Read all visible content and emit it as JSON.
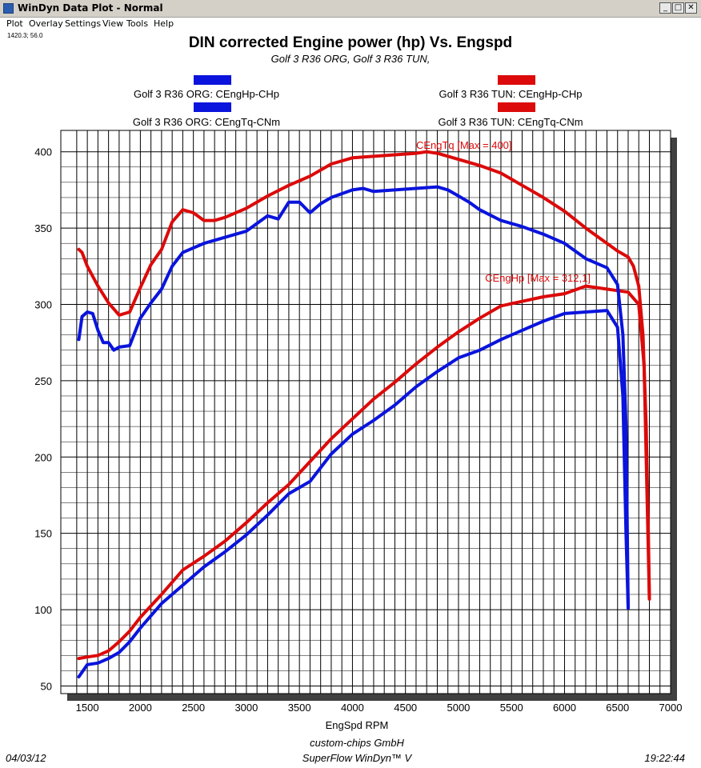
{
  "window": {
    "title": "WinDyn Data Plot - Normal",
    "buttons": {
      "minimize": "_",
      "restore": "□",
      "close": "✕"
    }
  },
  "menu": [
    "Plot",
    "Overlay",
    "Settings",
    "View",
    "Tools",
    "Help"
  ],
  "cursor_readout": "1420.3; 56.0",
  "footer": {
    "date": "04/03/12",
    "company": "custom-chips GmbH",
    "product": "SuperFlow WinDyn™ V",
    "time": "19:22:44"
  },
  "colors": {
    "org": "#0a14dc",
    "tun": "#dc0a0a",
    "grid": "#000000",
    "shadow": "#404040"
  },
  "chart_data": {
    "type": "line",
    "title": "DIN corrected Engine power (hp) Vs. Engspd",
    "subtitle": "Golf 3 R36 ORG, Golf 3 R36 TUN,",
    "xlabel": "EngSpd RPM",
    "ylabel": "",
    "xlim": [
      1250,
      7000
    ],
    "ylim": [
      45,
      414
    ],
    "xticks": [
      1500,
      2000,
      2500,
      3000,
      3500,
      4000,
      4500,
      5000,
      5500,
      6000,
      6500,
      7000
    ],
    "yticks": [
      50,
      100,
      150,
      200,
      250,
      300,
      350,
      400
    ],
    "legend": [
      {
        "label": "Golf 3 R36 ORG: CEngHp-CHp",
        "color": "#0a14dc"
      },
      {
        "label": "Golf 3 R36 TUN: CEngHp-CHp",
        "color": "#dc0a0a"
      },
      {
        "label": "Golf 3 R36 ORG: CEngTq-CNm",
        "color": "#0a14dc"
      },
      {
        "label": "Golf 3 R36 TUN: CEngTq-CNm",
        "color": "#dc0a0a"
      }
    ],
    "annotations": [
      {
        "text": "CEngTq [Max = 400]",
        "x": 4600,
        "y": 402,
        "color": "#dc0a0a"
      },
      {
        "text": "CEngHp [Max = 312,1]",
        "x": 5250,
        "y": 315,
        "color": "#dc0a0a"
      }
    ],
    "series": [
      {
        "name": "Golf 3 R36 ORG: CEngHp-CHp",
        "color": "#0a14dc",
        "x": [
          1420,
          1500,
          1600,
          1700,
          1800,
          1900,
          2000,
          2200,
          2400,
          2600,
          2800,
          3000,
          3200,
          3400,
          3600,
          3800,
          4000,
          4200,
          4400,
          4600,
          4800,
          5000,
          5200,
          5400,
          5600,
          5800,
          6000,
          6200,
          6400,
          6500,
          6550,
          6580,
          6600
        ],
        "y": [
          56,
          64,
          65,
          68,
          72,
          79,
          88,
          104,
          116,
          128,
          138,
          149,
          162,
          176,
          184,
          202,
          215,
          224,
          234,
          246,
          256,
          265,
          270,
          277,
          283,
          289,
          294,
          295,
          296,
          285,
          240,
          150,
          101
        ]
      },
      {
        "name": "Golf 3 R36 TUN: CEngHp-CHp",
        "color": "#dc0a0a",
        "x": [
          1420,
          1500,
          1600,
          1700,
          1800,
          1900,
          2000,
          2200,
          2400,
          2600,
          2800,
          3000,
          3200,
          3400,
          3600,
          3800,
          4000,
          4200,
          4400,
          4600,
          4800,
          5000,
          5200,
          5400,
          5600,
          5800,
          6000,
          6200,
          6400,
          6600,
          6700,
          6750,
          6780,
          6800
        ],
        "y": [
          68,
          69,
          70,
          73,
          79,
          86,
          95,
          110,
          126,
          135,
          145,
          157,
          170,
          182,
          197,
          212,
          225,
          238,
          249,
          261,
          272,
          282,
          291,
          299,
          302,
          305,
          307,
          312,
          310,
          308,
          300,
          260,
          170,
          107
        ]
      },
      {
        "name": "Golf 3 R36 ORG: CEngTq-CNm",
        "color": "#0a14dc",
        "x": [
          1420,
          1450,
          1500,
          1550,
          1600,
          1650,
          1700,
          1750,
          1800,
          1900,
          2000,
          2100,
          2200,
          2300,
          2400,
          2600,
          2800,
          3000,
          3200,
          3300,
          3400,
          3500,
          3600,
          3700,
          3800,
          4000,
          4100,
          4200,
          4400,
          4600,
          4800,
          4900,
          5000,
          5100,
          5200,
          5400,
          5600,
          5800,
          6000,
          6200,
          6400,
          6500,
          6550,
          6580,
          6600
        ],
        "y": [
          277,
          292,
          295,
          294,
          283,
          275,
          275,
          270,
          272,
          273,
          291,
          301,
          310,
          325,
          334,
          340,
          344,
          348,
          358,
          356,
          367,
          367,
          360,
          366,
          370,
          375,
          376,
          374,
          375,
          376,
          377,
          375,
          371,
          367,
          362,
          355,
          351,
          346,
          340,
          330,
          324,
          313,
          280,
          220,
          101
        ]
      },
      {
        "name": "Golf 3 R36 TUN: CEngTq-CNm",
        "color": "#dc0a0a",
        "x": [
          1420,
          1450,
          1500,
          1600,
          1700,
          1800,
          1900,
          2000,
          2100,
          2200,
          2300,
          2400,
          2500,
          2600,
          2700,
          2800,
          3000,
          3200,
          3400,
          3600,
          3800,
          4000,
          4200,
          4400,
          4600,
          4700,
          4800,
          5000,
          5200,
          5400,
          5600,
          5800,
          6000,
          6200,
          6400,
          6500,
          6600,
          6650,
          6700,
          6740,
          6770,
          6790,
          6800
        ],
        "y": [
          336,
          334,
          325,
          312,
          301,
          293,
          295,
          311,
          326,
          336,
          354,
          362,
          360,
          355,
          355,
          357,
          363,
          371,
          378,
          384,
          392,
          396,
          397,
          398,
          399,
          400,
          399,
          395,
          391,
          386,
          378,
          370,
          361,
          350,
          340,
          335,
          331,
          325,
          312,
          280,
          220,
          150,
          107
        ]
      }
    ]
  }
}
